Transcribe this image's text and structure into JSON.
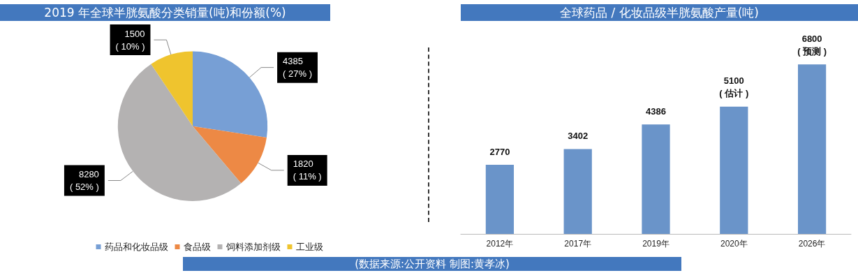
{
  "chart_data": [
    {
      "type": "pie",
      "title": "2019 年全球半胱氨酸分类销量(吨)和份额(%)",
      "categories": [
        "药品和化妆品级",
        "食品级",
        "饲料添加剂级",
        "工业级"
      ],
      "values": [
        4385,
        1820,
        8280,
        1500
      ],
      "colors": [
        "#779fd5",
        "#ed8945",
        "#b4b2b2",
        "#efc42e"
      ],
      "value_labels": [
        "4385\n( 27% )",
        "1820\n( 11% )",
        "8280\n( 52% )",
        "1500\n( 10% )"
      ],
      "legend": "bottom",
      "annotations": [
        "(数据来源:公开资料  制图:黄孝冰)"
      ]
    },
    {
      "type": "bar",
      "title": "全球药品 / 化妆品级半胱氨酸产量(吨)",
      "categories": [
        "2012年",
        "2017年",
        "2019年",
        "2020年",
        "2026年"
      ],
      "values": [
        2770,
        3402,
        4386,
        5100,
        6800
      ],
      "color": "#6a94c9",
      "value_labels": [
        "2770",
        "3402",
        "4386",
        "5100\n( 估计 )",
        "6800\n( 预测 )"
      ]
    }
  ]
}
